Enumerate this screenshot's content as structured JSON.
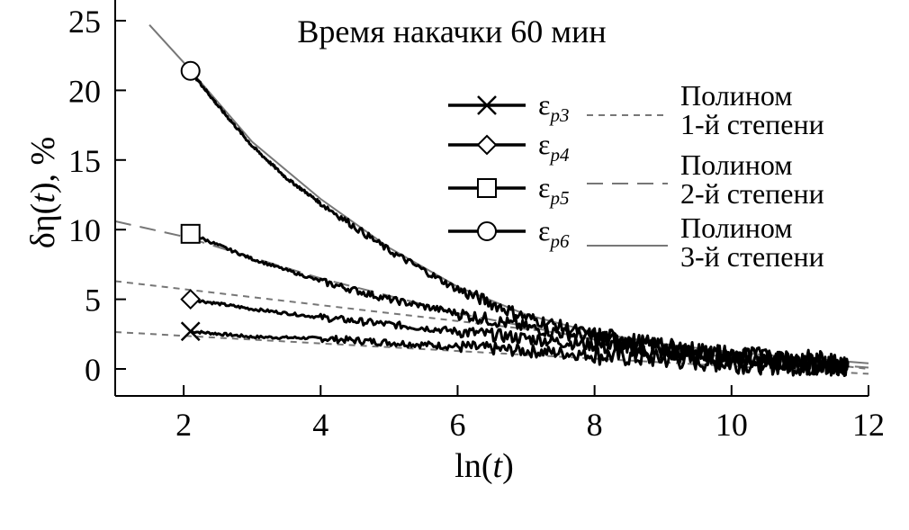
{
  "chart_data": {
    "type": "line",
    "title": "Время накачки 60 мин",
    "xlabel": "ln(t)",
    "ylabel": "δη(t), %",
    "xlim": [
      1,
      12
    ],
    "ylim": [
      -2,
      25
    ],
    "xticks": [
      2,
      4,
      6,
      8,
      10,
      12
    ],
    "yticks": [
      0,
      5,
      10,
      15,
      20,
      25
    ],
    "series": [
      {
        "name": "εp3",
        "marker": "cross",
        "x": [
          2.1,
          3.0,
          4.0,
          5.0,
          6.0,
          7.0,
          8.0,
          9.0,
          10.0,
          11.0,
          11.7
        ],
        "y": [
          2.7,
          2.3,
          2.2,
          1.9,
          1.6,
          1.3,
          1.0,
          0.7,
          0.4,
          0.2,
          0.1
        ]
      },
      {
        "name": "εp4",
        "marker": "diamond",
        "x": [
          2.1,
          3.0,
          4.0,
          5.0,
          6.0,
          7.0,
          8.0,
          9.0,
          10.0,
          11.0,
          11.7
        ],
        "y": [
          5.0,
          4.3,
          3.7,
          3.2,
          2.7,
          2.2,
          1.7,
          1.2,
          0.8,
          0.4,
          0.1
        ]
      },
      {
        "name": "εp5",
        "marker": "square",
        "x": [
          2.1,
          3.0,
          4.0,
          5.0,
          6.0,
          7.0,
          8.0,
          9.0,
          10.0,
          11.0,
          11.7
        ],
        "y": [
          9.7,
          7.9,
          6.3,
          5.0,
          4.0,
          3.0,
          2.2,
          1.5,
          0.9,
          0.5,
          0.3
        ]
      },
      {
        "name": "εp6",
        "marker": "circle",
        "x": [
          2.1,
          2.5,
          3.0,
          3.5,
          4.0,
          5.0,
          6.0,
          7.0,
          8.0,
          9.0,
          10.0,
          11.0,
          11.7
        ],
        "y": [
          21.4,
          18.9,
          16.0,
          13.7,
          11.9,
          8.5,
          5.7,
          3.7,
          2.4,
          1.5,
          1.0,
          0.7,
          0.5
        ]
      }
    ],
    "fits": [
      {
        "name": "Полином 1-й степени",
        "style": "dashed-short",
        "x": [
          1.0,
          12.0
        ],
        "y": [
          2.65,
          -0.35
        ]
      },
      {
        "name": "Полином 1-й степени",
        "style": "dashed-short",
        "x": [
          1.0,
          12.0
        ],
        "y": [
          6.3,
          0.0
        ]
      },
      {
        "name": "Полином 2-й степени",
        "style": "dashed-long",
        "x": [
          1.0,
          2.0,
          4.0,
          6.0,
          8.0,
          10.0,
          12.0
        ],
        "y": [
          10.6,
          9.5,
          6.5,
          4.0,
          2.1,
          0.8,
          0.1
        ]
      },
      {
        "name": "Полином 3-й степени",
        "style": "solid",
        "x": [
          1.5,
          2.0,
          3.0,
          4.0,
          5.0,
          6.0,
          7.0,
          8.0,
          9.0,
          10.0,
          11.0,
          12.0
        ],
        "y": [
          24.7,
          22.0,
          16.3,
          12.2,
          8.7,
          5.9,
          3.9,
          2.6,
          1.8,
          1.2,
          0.8,
          0.4
        ]
      }
    ],
    "legend": {
      "position": "top-right",
      "entries": [
        {
          "label": "ε",
          "sub": "p3",
          "marker": "cross"
        },
        {
          "label": "ε",
          "sub": "p4",
          "marker": "diamond"
        },
        {
          "label": "ε",
          "sub": "p5",
          "marker": "square"
        },
        {
          "label": "ε",
          "sub": "p6",
          "marker": "circle"
        }
      ],
      "fit_entries": [
        {
          "line1": "Полином",
          "line2": "1-й степени",
          "style": "dashed-short"
        },
        {
          "line1": "Полином",
          "line2": "2-й степени",
          "style": "dashed-long"
        },
        {
          "line1": "Полином",
          "line2": "3-й степени",
          "style": "solid"
        }
      ]
    },
    "colors": {
      "data": "#000000",
      "fit": "#777777"
    }
  }
}
